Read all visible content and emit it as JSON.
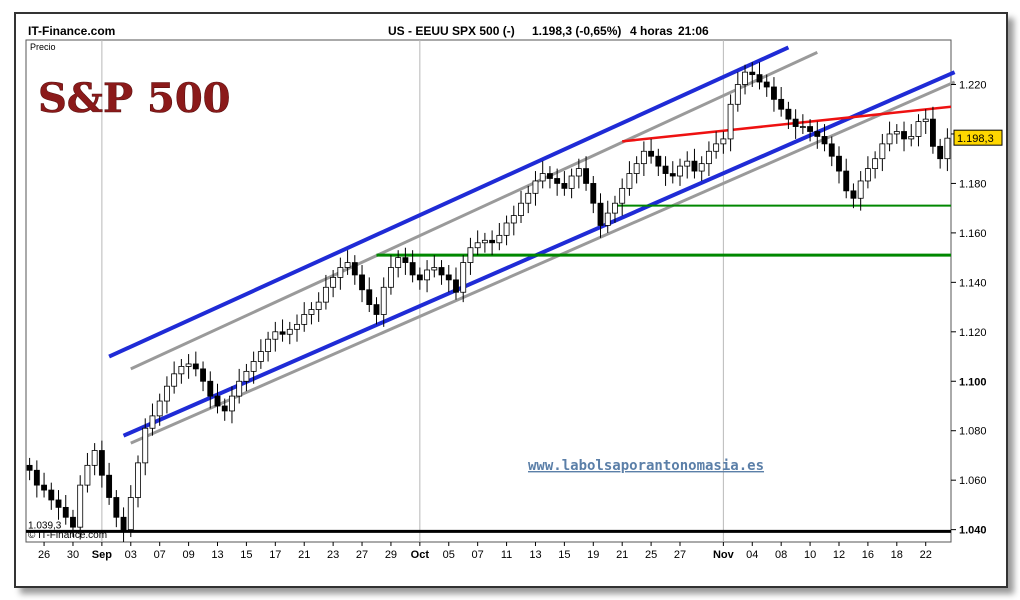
{
  "header": {
    "brand": "IT-Finance.com",
    "instrument": "US - EEUU SPX 500 (-)",
    "price": "1.198,3 (-0,65%)",
    "timeframe": "4 horas",
    "time": "21:06"
  },
  "panel_label": "Precio",
  "watermark_title": "S&P 500",
  "website": "www.labolsaporantonomasia.es",
  "footer_copyright": "© IT-Finance.com",
  "colors": {
    "candle": "#000000",
    "channel_blue": "#1f2bd6",
    "channel_gray": "#9a9a9a",
    "support_green": "#008800",
    "resistance_red": "#ee1111",
    "baseline_black": "#000000",
    "title_red": "#8b1a1a",
    "website_blue": "#5b7fa8",
    "last_price_box": "#ffd700"
  },
  "chart_data": {
    "type": "candlestick",
    "title": "US - EEUU SPX 500 (-)",
    "ylabel": "Precio",
    "ylim": [
      1035,
      1238
    ],
    "y_ticks": [
      "1.220",
      "1.200",
      "1.180",
      "1.160",
      "1.140",
      "1.120",
      "1.100",
      "1.080",
      "1.060",
      "1.040"
    ],
    "y_tick_values": [
      1220,
      1200,
      1180,
      1160,
      1140,
      1120,
      1100,
      1080,
      1060,
      1040
    ],
    "bold_ticks": [
      "1.100",
      "1.040"
    ],
    "x_ticks": [
      "26",
      "30",
      "Sep",
      "03",
      "07",
      "09",
      "13",
      "15",
      "17",
      "21",
      "23",
      "27",
      "29",
      "Oct",
      "05",
      "07",
      "11",
      "13",
      "15",
      "19",
      "21",
      "25",
      "27",
      "Nov",
      "04",
      "08",
      "10",
      "12",
      "16",
      "18",
      "22"
    ],
    "x_tick_index": [
      2,
      6,
      10,
      14,
      18,
      22,
      26,
      30,
      34,
      38,
      42,
      46,
      50,
      54,
      58,
      62,
      66,
      70,
      74,
      78,
      82,
      86,
      90,
      96,
      100,
      104,
      108,
      112,
      116,
      120,
      124
    ],
    "last_price_label": "1.198,3",
    "last_price": 1198.3,
    "min_price_label": "1.039,3",
    "min_price": 1039.3,
    "x_count": 128,
    "close": [
      1064,
      1058,
      1056,
      1052,
      1049,
      1045,
      1041,
      1058,
      1066,
      1072,
      1062,
      1053,
      1045,
      1040,
      1053,
      1067,
      1081,
      1086,
      1092,
      1098,
      1103,
      1106,
      1107,
      1105,
      1100,
      1094,
      1090,
      1088,
      1094,
      1100,
      1104,
      1108,
      1112,
      1117,
      1120,
      1119,
      1121,
      1123,
      1127,
      1129,
      1132,
      1138,
      1142,
      1146,
      1148,
      1143,
      1137,
      1131,
      1127,
      1138,
      1146,
      1150,
      1148,
      1143,
      1141,
      1145,
      1146,
      1143,
      1141,
      1136,
      1148,
      1154,
      1156,
      1157,
      1156,
      1159,
      1164,
      1167,
      1172,
      1176,
      1181,
      1184,
      1182,
      1180,
      1178,
      1183,
      1186,
      1180,
      1172,
      1163,
      1168,
      1172,
      1178,
      1184,
      1188,
      1193,
      1191,
      1187,
      1184,
      1183,
      1187,
      1189,
      1185,
      1188,
      1193,
      1196,
      1198,
      1212,
      1220,
      1225,
      1224,
      1221,
      1219,
      1214,
      1210,
      1206,
      1203,
      1203,
      1201,
      1199,
      1196,
      1191,
      1185,
      1177,
      1174,
      1181,
      1186,
      1190,
      1196,
      1200,
      1201,
      1198,
      1199,
      1205,
      1206,
      1195,
      1190,
      1198.3
    ],
    "support_lines": [
      {
        "value": 1171,
        "x_from_index": 81
      },
      {
        "value": 1151,
        "x_from_index": 48
      }
    ],
    "resistance_line": {
      "x_index": [
        82,
        128
      ],
      "values": [
        1197,
        1211
      ]
    },
    "channel_lines": [
      {
        "style": "blue",
        "x_index": [
          11,
          105
        ],
        "values": [
          1110,
          1235
        ]
      },
      {
        "style": "blue",
        "x_index": [
          13,
          128
        ],
        "values": [
          1078,
          1225
        ]
      },
      {
        "style": "gray",
        "x_index": [
          14,
          109
        ],
        "values": [
          1105,
          1233
        ]
      },
      {
        "style": "gray",
        "x_index": [
          14,
          128
        ],
        "values": [
          1075,
          1221
        ]
      }
    ],
    "baseline_value": 1039.3,
    "grid_verticals_at_ticks": [
      "Sep",
      "Oct",
      "Nov"
    ]
  }
}
